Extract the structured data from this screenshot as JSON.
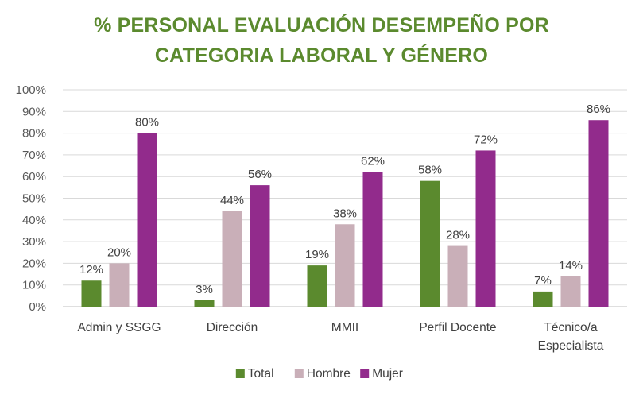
{
  "chart_data": {
    "type": "bar",
    "title_lines": [
      "% PERSONAL EVALUACIÓN DESEMPEÑO POR",
      "CATEGORIA LABORAL Y GÉNERO"
    ],
    "categories": [
      [
        "Admin y SSGG"
      ],
      [
        "Dirección"
      ],
      [
        "MMII"
      ],
      [
        "Perfil Docente"
      ],
      [
        "Técnico/a",
        "Especialista"
      ]
    ],
    "series": [
      {
        "name": "Total",
        "color": "#5B8A2E",
        "values": [
          12,
          3,
          19,
          58,
          7
        ]
      },
      {
        "name": "Hombre",
        "color": "#C9AFB8",
        "values": [
          20,
          44,
          38,
          28,
          14
        ]
      },
      {
        "name": "Mujer",
        "color": "#922B8C",
        "values": [
          80,
          56,
          62,
          72,
          86
        ]
      }
    ],
    "value_suffix": "%",
    "ylim": [
      0,
      100
    ],
    "y_ticks": [
      "0%",
      "10%",
      "20%",
      "30%",
      "40%",
      "50%",
      "60%",
      "70%",
      "80%",
      "90%",
      "100%"
    ],
    "grid": true,
    "legend_position": "bottom",
    "title_color": "#5B8A2E"
  }
}
